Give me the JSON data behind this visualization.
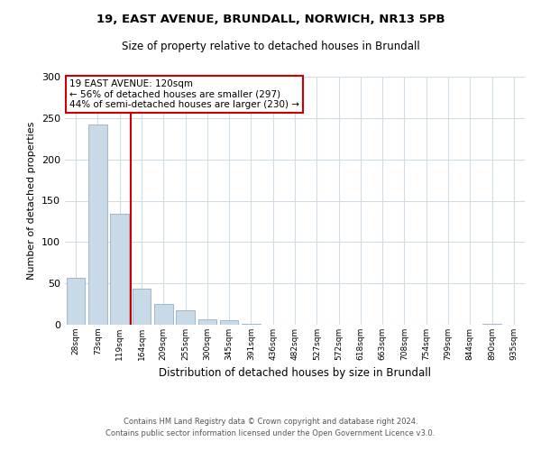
{
  "title1": "19, EAST AVENUE, BRUNDALL, NORWICH, NR13 5PB",
  "title2": "Size of property relative to detached houses in Brundall",
  "xlabel": "Distribution of detached houses by size in Brundall",
  "ylabel": "Number of detached properties",
  "bar_labels": [
    "28sqm",
    "73sqm",
    "119sqm",
    "164sqm",
    "209sqm",
    "255sqm",
    "300sqm",
    "345sqm",
    "391sqm",
    "436sqm",
    "482sqm",
    "527sqm",
    "572sqm",
    "618sqm",
    "663sqm",
    "708sqm",
    "754sqm",
    "799sqm",
    "844sqm",
    "890sqm",
    "935sqm"
  ],
  "bar_values": [
    57,
    242,
    134,
    44,
    25,
    18,
    7,
    5,
    1,
    0,
    0,
    0,
    0,
    0,
    0,
    0,
    0,
    0,
    0,
    1,
    0
  ],
  "bar_color": "#c8d9e8",
  "bar_edge_color": "#a0b8cc",
  "property_line_color": "#cc0000",
  "property_line_x": 2.5,
  "annotation_text1": "19 EAST AVENUE: 120sqm",
  "annotation_text2": "← 56% of detached houses are smaller (297)",
  "annotation_text3": "44% of semi-detached houses are larger (230) →",
  "box_edge_color": "#cc0000",
  "ylim": [
    0,
    300
  ],
  "yticks": [
    0,
    50,
    100,
    150,
    200,
    250,
    300
  ],
  "footnote1": "Contains HM Land Registry data © Crown copyright and database right 2024.",
  "footnote2": "Contains public sector information licensed under the Open Government Licence v3.0.",
  "background_color": "#ffffff",
  "grid_color": "#d0dce8"
}
